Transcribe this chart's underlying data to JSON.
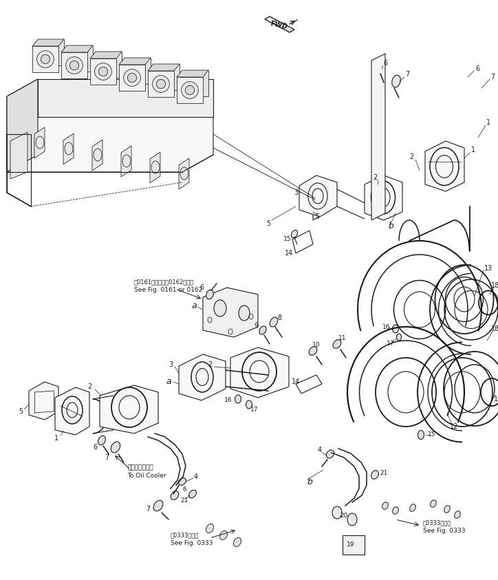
{
  "background_color": "#ffffff",
  "line_color": "#1a1a1a",
  "fig_width": 7.24,
  "fig_height": 8.43,
  "dpi": 100,
  "notes": {
    "note1_jp": "第0161図または第0162図参照",
    "note1_en": "See Fig. 0161 or 0162",
    "note2_jp": "オイルクーラヘ",
    "note2_en": "To Oil Cooler",
    "note3_jp": "第0333図参照",
    "note3_en": "See Fig. 0333"
  }
}
